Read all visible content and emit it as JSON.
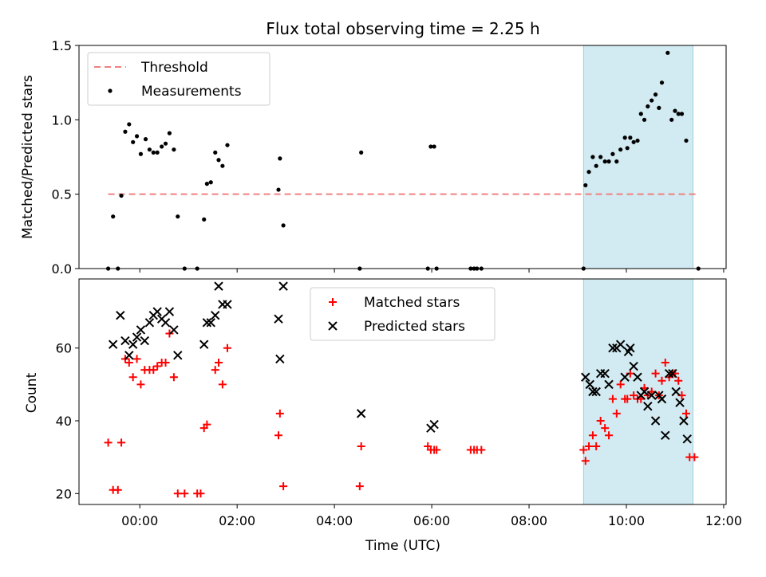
{
  "chart_data": [
    {
      "type": "scatter",
      "title": "Flux total observing time = 2.25 h",
      "xlabel": "",
      "ylabel": "Matched/Predicted stars",
      "ylim": [
        0,
        1.5
      ],
      "yticks": [
        "0.0",
        "0.5",
        "1.0",
        "1.5"
      ],
      "xlim_hours": [
        -1.25,
        12.05
      ],
      "threshold": 0.5,
      "highlight_span_hours": [
        9.12,
        11.37
      ],
      "highlight_color": "#add8e6",
      "legend": {
        "position": "upper left",
        "entries": [
          "Threshold",
          "Measurements"
        ]
      },
      "series": [
        {
          "name": "Threshold",
          "style": "dashed-line",
          "color": "#f08080"
        },
        {
          "name": "Measurements",
          "color": "#000000",
          "points": [
            [
              -0.65,
              0
            ],
            [
              -0.55,
              0.35
            ],
            [
              -0.45,
              0
            ],
            [
              -0.38,
              0.49
            ],
            [
              -0.3,
              0.92
            ],
            [
              -0.22,
              0.97
            ],
            [
              -0.14,
              0.85
            ],
            [
              -0.06,
              0.89
            ],
            [
              0.02,
              0.77
            ],
            [
              0.12,
              0.87
            ],
            [
              0.2,
              0.8
            ],
            [
              0.28,
              0.78
            ],
            [
              0.36,
              0.78
            ],
            [
              0.45,
              0.82
            ],
            [
              0.53,
              0.84
            ],
            [
              0.61,
              0.91
            ],
            [
              0.7,
              0.8
            ],
            [
              0.78,
              0.35
            ],
            [
              0.92,
              0
            ],
            [
              1.18,
              0
            ],
            [
              1.32,
              0.33
            ],
            [
              1.38,
              0.57
            ],
            [
              1.46,
              0.58
            ],
            [
              1.55,
              0.78
            ],
            [
              1.62,
              0.73
            ],
            [
              1.7,
              0.69
            ],
            [
              1.8,
              0.83
            ],
            [
              2.85,
              0.53
            ],
            [
              2.88,
              0.74
            ],
            [
              2.95,
              0.29
            ],
            [
              4.52,
              0
            ],
            [
              4.55,
              0.78
            ],
            [
              5.92,
              0
            ],
            [
              5.98,
              0.82
            ],
            [
              6.05,
              0.82
            ],
            [
              6.1,
              0
            ],
            [
              6.8,
              0
            ],
            [
              6.87,
              0
            ],
            [
              6.93,
              0
            ],
            [
              7.02,
              0
            ],
            [
              9.12,
              0
            ],
            [
              9.16,
              0.56
            ],
            [
              9.23,
              0.65
            ],
            [
              9.31,
              0.75
            ],
            [
              9.38,
              0.69
            ],
            [
              9.47,
              0.75
            ],
            [
              9.56,
              0.72
            ],
            [
              9.64,
              0.72
            ],
            [
              9.72,
              0.77
            ],
            [
              9.8,
              0.72
            ],
            [
              9.88,
              0.8
            ],
            [
              9.97,
              0.88
            ],
            [
              10.02,
              0.81
            ],
            [
              10.08,
              0.88
            ],
            [
              10.15,
              0.85
            ],
            [
              10.23,
              0.86
            ],
            [
              10.3,
              1.04
            ],
            [
              10.37,
              1.0
            ],
            [
              10.44,
              1.09
            ],
            [
              10.52,
              1.13
            ],
            [
              10.6,
              1.17
            ],
            [
              10.67,
              1.08
            ],
            [
              10.73,
              1.25
            ],
            [
              10.85,
              1.45
            ],
            [
              10.93,
              1.0
            ],
            [
              11.0,
              1.06
            ],
            [
              11.07,
              1.04
            ],
            [
              11.14,
              1.04
            ],
            [
              11.23,
              0.86
            ],
            [
              11.48,
              0
            ]
          ]
        }
      ]
    },
    {
      "type": "scatter",
      "title": "",
      "xlabel": "Time (UTC)",
      "ylabel": "Count",
      "ylim": [
        17,
        79
      ],
      "yticks": [
        "20",
        "40",
        "60"
      ],
      "xlim_hours": [
        -1.25,
        12.05
      ],
      "xticks": [
        "00:00",
        "02:00",
        "04:00",
        "06:00",
        "08:00",
        "10:00",
        "12:00"
      ],
      "highlight_span_hours": [
        9.12,
        11.37
      ],
      "highlight_color": "#add8e6",
      "legend": {
        "position": "upper center",
        "entries": [
          "Matched stars",
          "Predicted stars"
        ]
      },
      "series": [
        {
          "name": "Matched stars",
          "marker": "plus",
          "color": "#ff0000",
          "points": [
            [
              -0.65,
              34
            ],
            [
              -0.55,
              21
            ],
            [
              -0.45,
              21
            ],
            [
              -0.38,
              34
            ],
            [
              -0.3,
              57
            ],
            [
              -0.22,
              56
            ],
            [
              -0.14,
              52
            ],
            [
              -0.06,
              57
            ],
            [
              0.02,
              50
            ],
            [
              0.1,
              54
            ],
            [
              0.2,
              54
            ],
            [
              0.28,
              54
            ],
            [
              0.36,
              55
            ],
            [
              0.45,
              56
            ],
            [
              0.53,
              56
            ],
            [
              0.61,
              64
            ],
            [
              0.7,
              52
            ],
            [
              0.78,
              20
            ],
            [
              0.92,
              20
            ],
            [
              1.18,
              20
            ],
            [
              1.25,
              20
            ],
            [
              1.32,
              38
            ],
            [
              1.38,
              39
            ],
            [
              1.55,
              54
            ],
            [
              1.62,
              56
            ],
            [
              1.7,
              50
            ],
            [
              1.8,
              60
            ],
            [
              2.85,
              36
            ],
            [
              2.88,
              42
            ],
            [
              2.95,
              22
            ],
            [
              4.52,
              22
            ],
            [
              4.55,
              33
            ],
            [
              5.92,
              33
            ],
            [
              5.98,
              32
            ],
            [
              6.05,
              32
            ],
            [
              6.1,
              32
            ],
            [
              6.8,
              32
            ],
            [
              6.87,
              32
            ],
            [
              6.93,
              32
            ],
            [
              7.02,
              32
            ],
            [
              9.12,
              32
            ],
            [
              9.16,
              29
            ],
            [
              9.23,
              33
            ],
            [
              9.31,
              36
            ],
            [
              9.38,
              33
            ],
            [
              9.47,
              40
            ],
            [
              9.56,
              38
            ],
            [
              9.64,
              36
            ],
            [
              9.72,
              46
            ],
            [
              9.8,
              42
            ],
            [
              9.88,
              50
            ],
            [
              9.97,
              46
            ],
            [
              10.02,
              46
            ],
            [
              10.08,
              53
            ],
            [
              10.15,
              47
            ],
            [
              10.23,
              46
            ],
            [
              10.3,
              46
            ],
            [
              10.37,
              49
            ],
            [
              10.44,
              47
            ],
            [
              10.52,
              48
            ],
            [
              10.6,
              53
            ],
            [
              10.67,
              47
            ],
            [
              10.73,
              51
            ],
            [
              10.8,
              56
            ],
            [
              10.88,
              52
            ],
            [
              10.95,
              53
            ],
            [
              11.0,
              53
            ],
            [
              11.07,
              51
            ],
            [
              11.14,
              47
            ],
            [
              11.23,
              42
            ],
            [
              11.3,
              30
            ],
            [
              11.4,
              30
            ]
          ]
        },
        {
          "name": "Predicted stars",
          "marker": "x",
          "color": "#000000",
          "points": [
            [
              -0.55,
              61
            ],
            [
              -0.4,
              69
            ],
            [
              -0.3,
              62
            ],
            [
              -0.22,
              58
            ],
            [
              -0.14,
              61
            ],
            [
              -0.06,
              63
            ],
            [
              0.02,
              65
            ],
            [
              0.1,
              62
            ],
            [
              0.2,
              67
            ],
            [
              0.28,
              69
            ],
            [
              0.36,
              70
            ],
            [
              0.45,
              68
            ],
            [
              0.53,
              67
            ],
            [
              0.61,
              70
            ],
            [
              0.7,
              65
            ],
            [
              0.78,
              58
            ],
            [
              1.32,
              61
            ],
            [
              1.38,
              67
            ],
            [
              1.46,
              67
            ],
            [
              1.55,
              69
            ],
            [
              1.62,
              77
            ],
            [
              1.7,
              72
            ],
            [
              1.8,
              72
            ],
            [
              2.85,
              68
            ],
            [
              2.88,
              57
            ],
            [
              2.95,
              77
            ],
            [
              4.55,
              42
            ],
            [
              5.98,
              38
            ],
            [
              6.05,
              39
            ],
            [
              9.16,
              52
            ],
            [
              9.25,
              50
            ],
            [
              9.31,
              48
            ],
            [
              9.38,
              48
            ],
            [
              9.47,
              53
            ],
            [
              9.56,
              53
            ],
            [
              9.64,
              50
            ],
            [
              9.72,
              60
            ],
            [
              9.8,
              60
            ],
            [
              9.88,
              61
            ],
            [
              9.97,
              52
            ],
            [
              10.04,
              59
            ],
            [
              10.08,
              60
            ],
            [
              10.15,
              55
            ],
            [
              10.23,
              52
            ],
            [
              10.3,
              47
            ],
            [
              10.37,
              48
            ],
            [
              10.44,
              44
            ],
            [
              10.52,
              47
            ],
            [
              10.6,
              40
            ],
            [
              10.67,
              47
            ],
            [
              10.73,
              46
            ],
            [
              10.8,
              36
            ],
            [
              10.88,
              53
            ],
            [
              10.95,
              53
            ],
            [
              11.02,
              48
            ],
            [
              11.1,
              45
            ],
            [
              11.18,
              40
            ],
            [
              11.25,
              35
            ]
          ]
        }
      ]
    }
  ]
}
